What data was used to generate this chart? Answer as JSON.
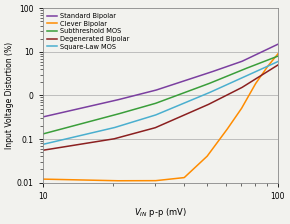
{
  "title": "",
  "xlabel": "$V_{IN}$ p-p (mV)",
  "ylabel": "Input Voltage Distortion (%)",
  "xlim": [
    10,
    100
  ],
  "ylim": [
    0.01,
    100
  ],
  "legend": [
    "Standard Bipolar",
    "Clever Bipolar",
    "Subthreshold MOS",
    "Degenerated Bipolar",
    "Square-Law MOS"
  ],
  "colors": {
    "Standard Bipolar": "#7B3FA0",
    "Clever Bipolar": "#FF8C00",
    "Subthreshold MOS": "#3A9E3A",
    "Degenerated Bipolar": "#8B2020",
    "Square-Law MOS": "#4AAFCF"
  },
  "background_color": "#F2F2EE",
  "grid_color": "#AAAAAA",
  "std_bipolar": {
    "x": [
      10,
      20,
      30,
      50,
      70,
      100
    ],
    "y": [
      0.32,
      0.75,
      1.3,
      3.2,
      6.0,
      15.0
    ]
  },
  "clever_bipolar": {
    "x": [
      10,
      20,
      30,
      40,
      50,
      60,
      70,
      80,
      90,
      100
    ],
    "y": [
      0.012,
      0.011,
      0.011,
      0.013,
      0.04,
      0.15,
      0.5,
      1.8,
      4.5,
      9.0
    ]
  },
  "subthreshold_mos": {
    "x": [
      10,
      20,
      30,
      50,
      70,
      100
    ],
    "y": [
      0.13,
      0.35,
      0.65,
      1.8,
      3.8,
      8.0
    ]
  },
  "degenerated_bipolar": {
    "x": [
      10,
      20,
      30,
      50,
      70,
      100
    ],
    "y": [
      0.055,
      0.1,
      0.18,
      0.6,
      1.5,
      5.0
    ]
  },
  "square_law_mos": {
    "x": [
      10,
      20,
      30,
      50,
      70,
      100
    ],
    "y": [
      0.075,
      0.18,
      0.35,
      1.1,
      2.5,
      6.0
    ]
  }
}
